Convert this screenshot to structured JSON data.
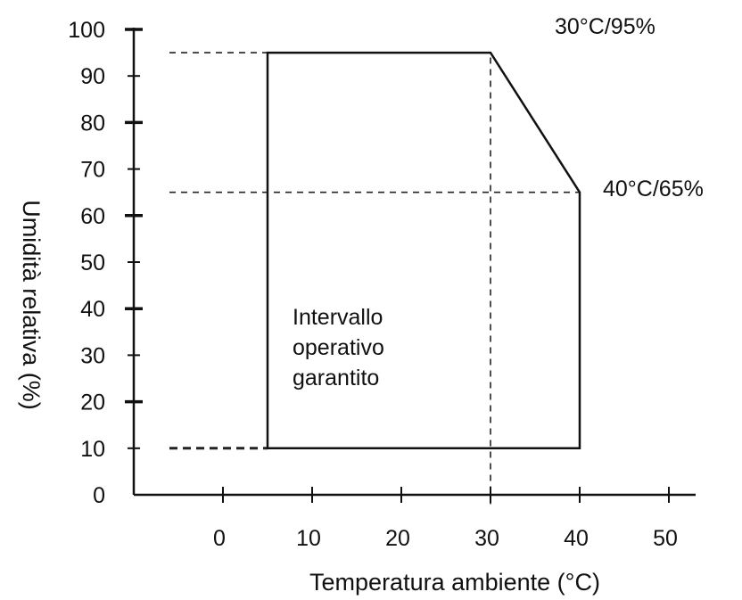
{
  "chart_data": {
    "type": "line",
    "title": "",
    "xlabel": "Temperatura ambiente (°C)",
    "ylabel": "Umidità relativa (%)",
    "xlim": [
      -10,
      50
    ],
    "ylim": [
      0,
      100
    ],
    "x_ticks": [
      0,
      10,
      20,
      30,
      40,
      50
    ],
    "y_ticks": [
      0,
      10,
      20,
      30,
      40,
      50,
      60,
      70,
      80,
      90,
      100
    ],
    "grid": false,
    "operating_region": {
      "label_lines": [
        "Intervallo",
        "operativo",
        "garantito"
      ],
      "points": [
        {
          "x": 5,
          "y": 10
        },
        {
          "x": 5,
          "y": 95
        },
        {
          "x": 30,
          "y": 95
        },
        {
          "x": 40,
          "y": 65
        },
        {
          "x": 40,
          "y": 10
        }
      ]
    },
    "reference_lines": [
      {
        "orientation": "horizontal",
        "y": 95,
        "from_x": -6,
        "to_x": 30,
        "style": "dashed"
      },
      {
        "orientation": "horizontal",
        "y": 65,
        "from_x": -6,
        "to_x": 40,
        "style": "dashed"
      },
      {
        "orientation": "horizontal",
        "y": 10,
        "from_x": -6,
        "to_x": 5,
        "style": "dashed"
      },
      {
        "orientation": "vertical",
        "x": 30,
        "from_y": -2,
        "to_y": 95,
        "style": "dashed"
      }
    ],
    "annotations": [
      {
        "text": "30°C/95%",
        "x": 30,
        "y": 95
      },
      {
        "text": "40°C/65%",
        "x": 40,
        "y": 65
      }
    ]
  }
}
